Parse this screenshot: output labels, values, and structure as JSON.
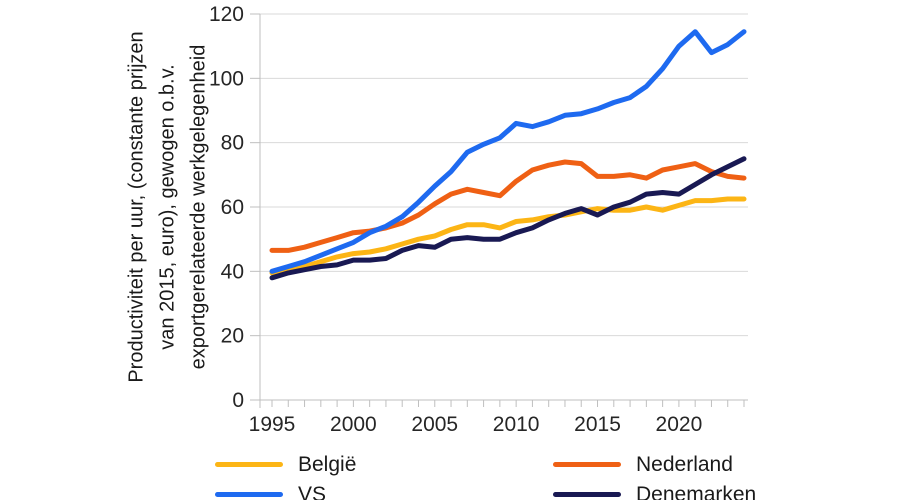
{
  "chart_data": {
    "type": "line",
    "title": "",
    "y_title_lines": [
      "Productiviteit per uur, (constante prijzen",
      "van 2015, euro), gewogen o.b.v.",
      "exportgerelateerde werkgelegenheid"
    ],
    "x": [
      1995,
      1996,
      1997,
      1998,
      1999,
      2000,
      2001,
      2002,
      2003,
      2004,
      2005,
      2006,
      2007,
      2008,
      2009,
      2010,
      2011,
      2012,
      2013,
      2014,
      2015,
      2016,
      2017,
      2018,
      2019,
      2020,
      2021,
      2022,
      2023,
      2024
    ],
    "x_major_ticks": [
      1995,
      2000,
      2005,
      2010,
      2015,
      2020
    ],
    "y_ticks": [
      0,
      20,
      40,
      60,
      80,
      100,
      120
    ],
    "ylim": [
      0,
      120
    ],
    "grid": "horizontal",
    "legend_position": "bottom",
    "series": [
      {
        "name": "België",
        "color": "#FCB515",
        "values": [
          39.5,
          40.5,
          41.5,
          43,
          44.5,
          45.5,
          46,
          47,
          48.5,
          50,
          51,
          53,
          54.5,
          54.5,
          53.5,
          55.5,
          56,
          57,
          57.5,
          58.5,
          59.5,
          59,
          59,
          60,
          59,
          60.5,
          62,
          62,
          62.5,
          62.5
        ]
      },
      {
        "name": "Nederland",
        "color": "#EF6014",
        "values": [
          46.5,
          46.5,
          47.5,
          49,
          50.5,
          52,
          52.5,
          53.5,
          55,
          57.5,
          61,
          64,
          65.5,
          64.5,
          63.5,
          68,
          71.5,
          73,
          74,
          73.5,
          69.5,
          69.5,
          70,
          69,
          71.5,
          72.5,
          73.5,
          71,
          69.5,
          69
        ]
      },
      {
        "name": "VS",
        "color": "#1E6AF0",
        "values": [
          40,
          41.5,
          43,
          45,
          47,
          49,
          52,
          54,
          57,
          61.5,
          66.5,
          71,
          77,
          79.5,
          81.5,
          86,
          85,
          86.5,
          88.5,
          89,
          90.5,
          92.5,
          94,
          97.5,
          103,
          110,
          114.5,
          108,
          110.5,
          114.5
        ]
      },
      {
        "name": "Denemarken",
        "color": "#191953",
        "values": [
          38,
          39.5,
          40.5,
          41.5,
          42,
          43.5,
          43.5,
          44,
          46.5,
          48,
          47.5,
          50,
          50.5,
          50,
          50,
          52,
          53.5,
          56,
          58,
          59.5,
          57.5,
          60,
          61.5,
          64,
          64.5,
          64,
          67,
          70,
          72.5,
          75
        ]
      }
    ],
    "axis_colors": {
      "gridline": "#D9D9D9",
      "axis": "#BFBFBF"
    }
  }
}
